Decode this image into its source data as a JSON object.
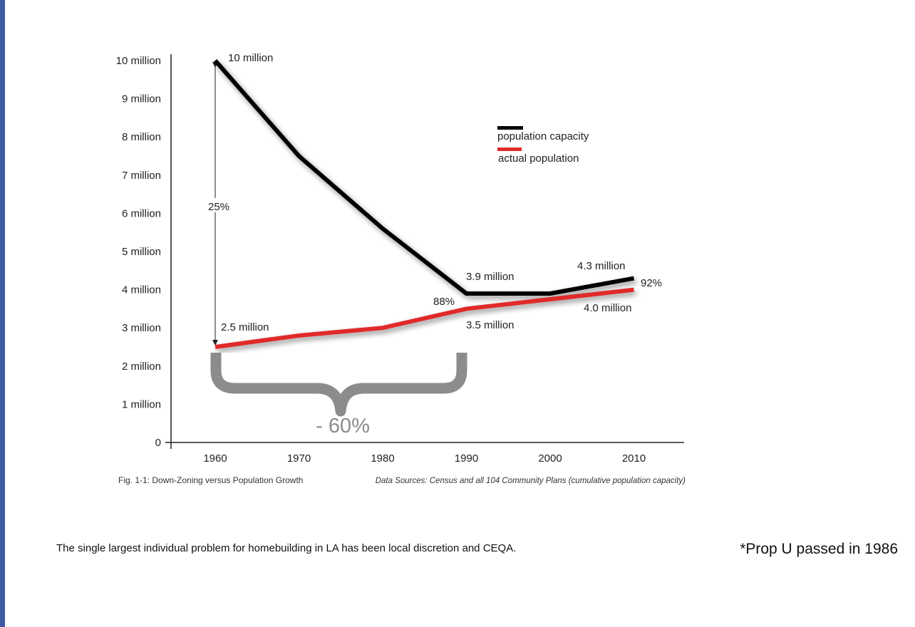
{
  "chart_data": {
    "type": "line",
    "x": [
      1960,
      1970,
      1980,
      1990,
      2000,
      2010
    ],
    "y_ticks": [
      "0",
      "1 million",
      "2 million",
      "3 million",
      "4 million",
      "5 million",
      "6 million",
      "7 million",
      "8 million",
      "9 million",
      "10 million"
    ],
    "x_ticks": [
      "1960",
      "1970",
      "1980",
      "1990",
      "2000",
      "2010"
    ],
    "ylim": [
      0,
      10
    ],
    "xlim": [
      1955,
      2016
    ],
    "series": [
      {
        "name": "population capacity",
        "color": "#000000",
        "values": [
          10.0,
          7.5,
          5.6,
          3.9,
          3.9,
          4.3
        ]
      },
      {
        "name": "actual population",
        "color": "#e02a2a",
        "values": [
          2.5,
          2.8,
          3.0,
          3.5,
          3.75,
          4.0
        ]
      }
    ],
    "legend": {
      "position": "top-right",
      "entries": [
        "population capacity",
        "actual population"
      ]
    },
    "annotations": {
      "cap_1960": "10 million",
      "pct_25": "25%",
      "act_1960": "2.5 million",
      "cap_1990": "3.9 million",
      "pct_88": "88%",
      "act_1990": "3.5 million",
      "cap_2010": "4.3 million",
      "pct_92": "92%",
      "act_2010": "4.0 million",
      "decline": "- 60%"
    },
    "caption": "Fig. 1-1: Down-Zoning versus Population Growth",
    "source": "Data Sources: Census and all 104 Community Plans (cumulative population capacity)",
    "grid": false
  },
  "footer": {
    "text": "The single largest individual problem for homebuilding in LA has been local discretion and CEQA.",
    "note": "*Prop U passed in 1986"
  }
}
